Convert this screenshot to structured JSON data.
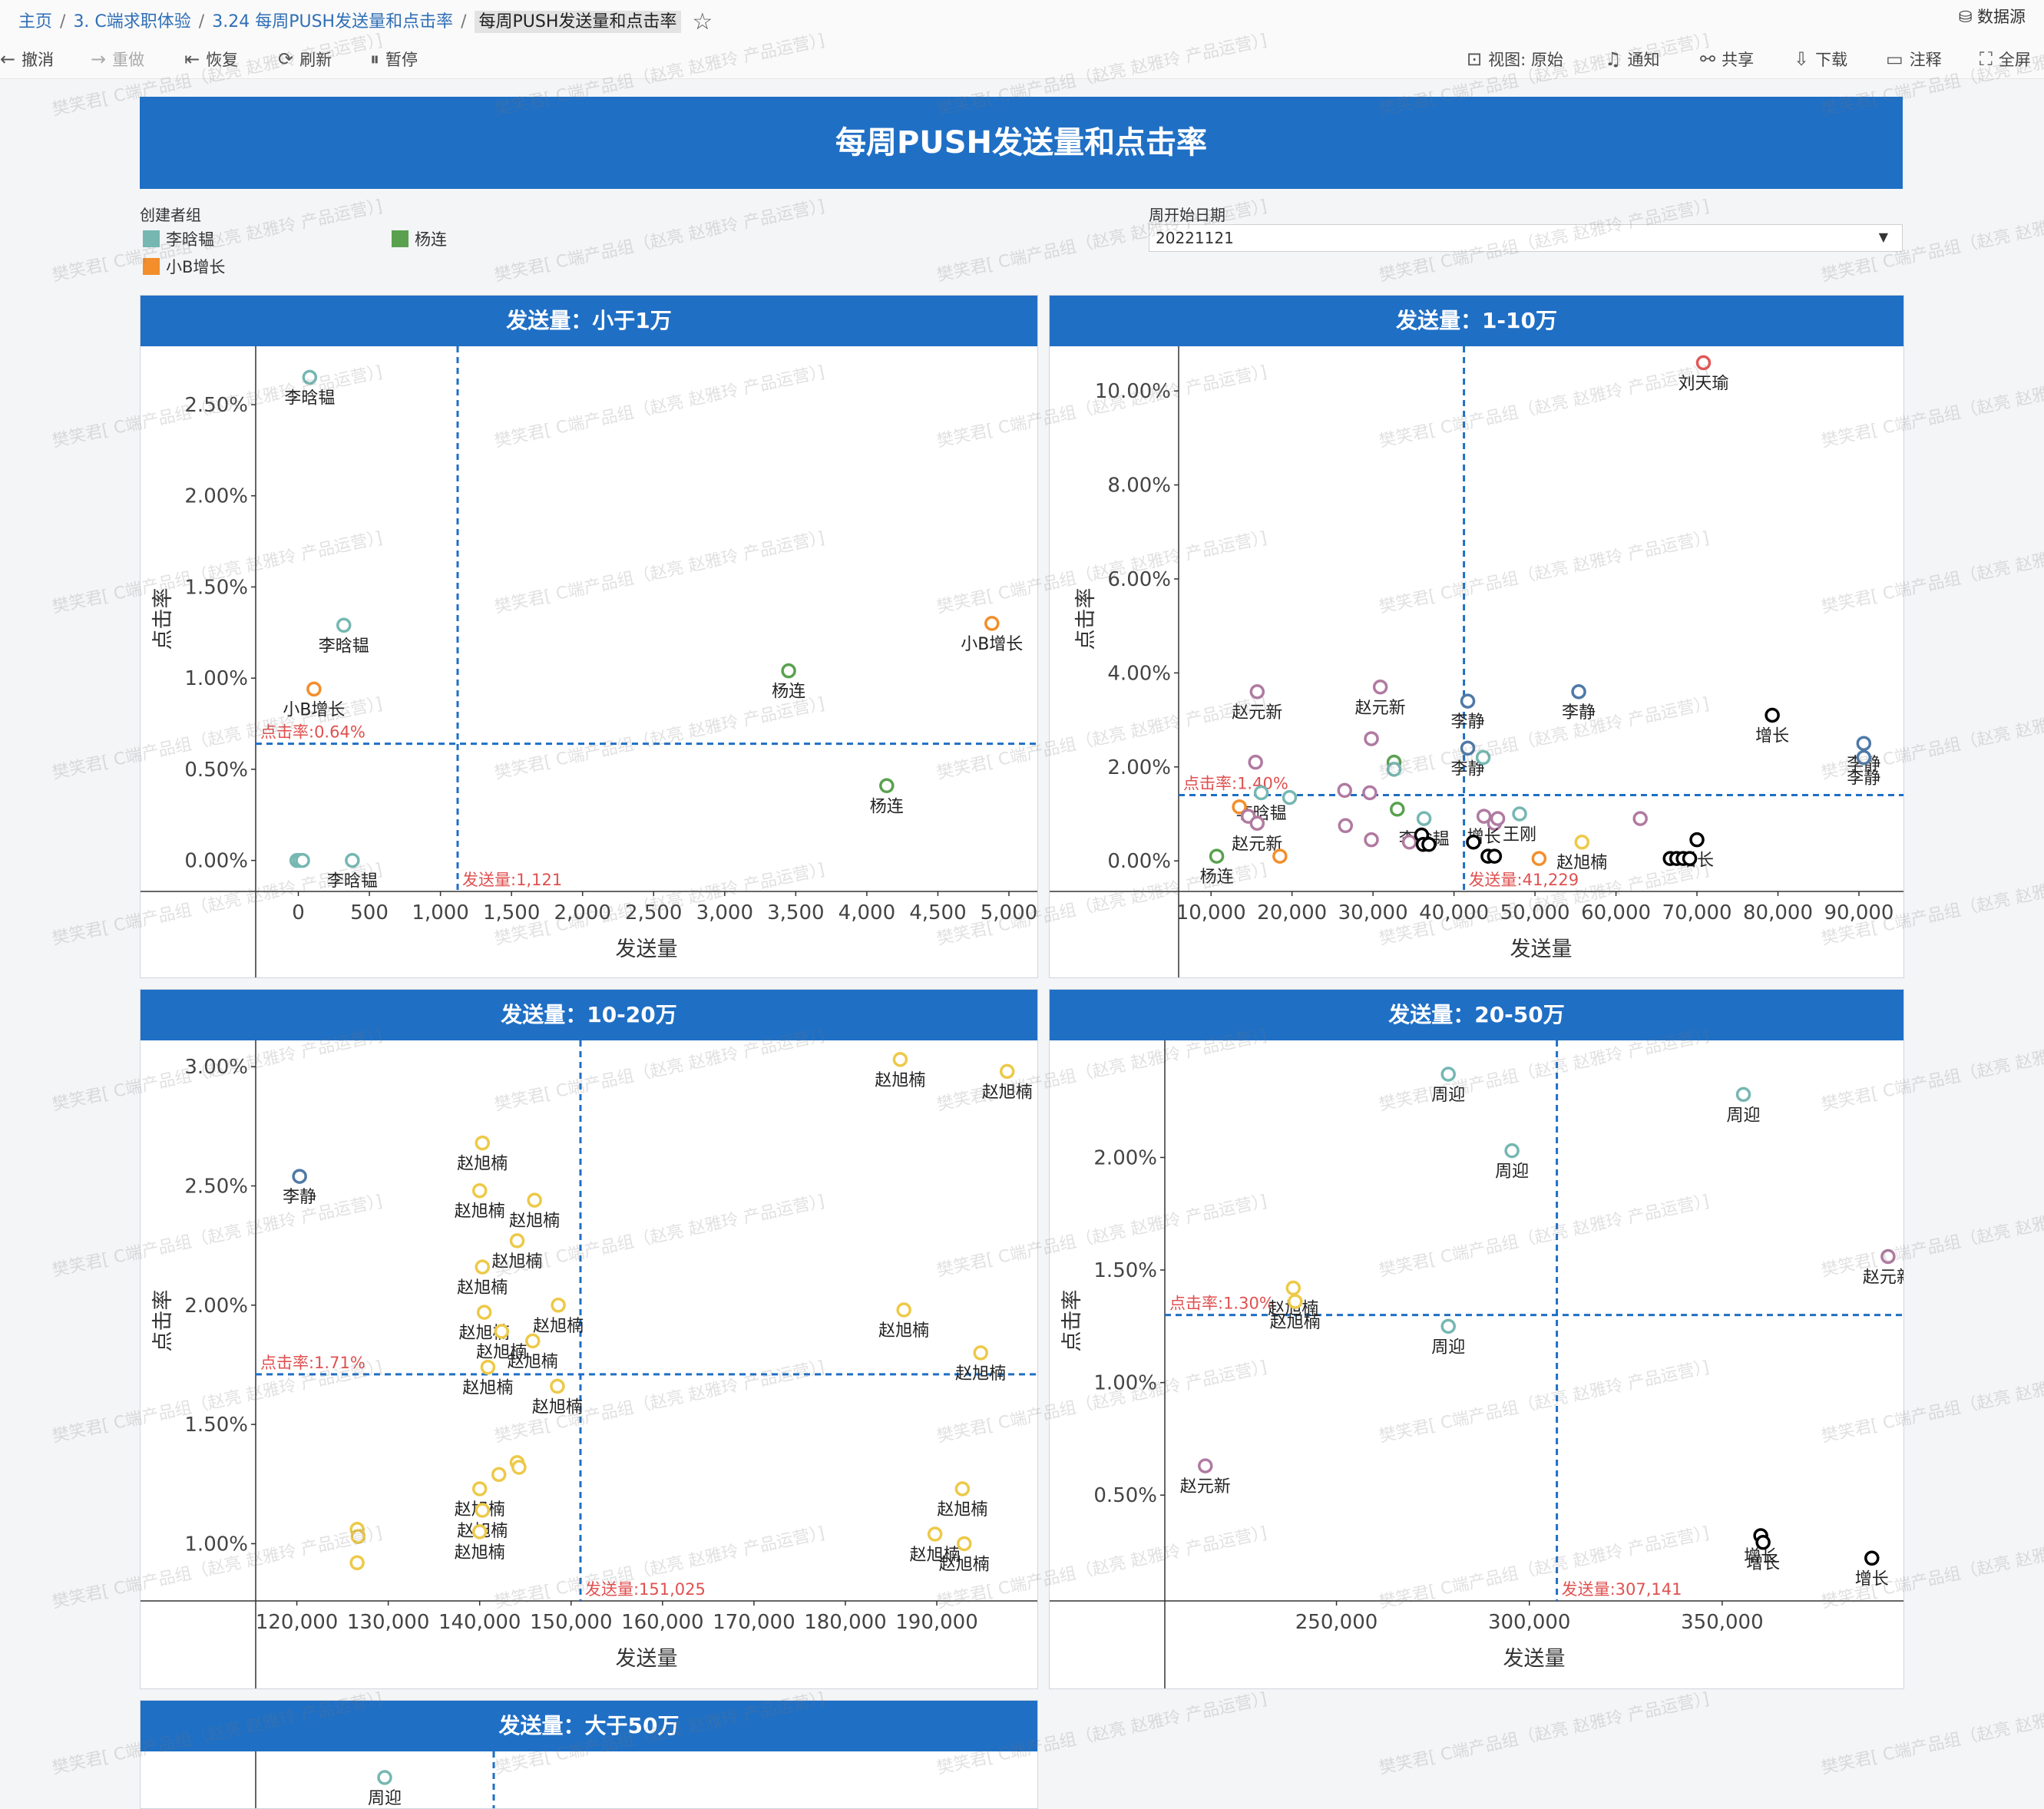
{
  "breadcrumb": {
    "items": [
      "主页",
      "3. C端求职体验",
      "3.24 每周PUSH发送量和点击率"
    ],
    "current": "每周PUSH发送量和点击率"
  },
  "datasource_label": "数据源",
  "toolbar": {
    "undo": "撤消",
    "redo": "重做",
    "revert": "恢复",
    "refresh": "刷新",
    "pause": "暂停",
    "view": "视图: 原始",
    "notify": "通知",
    "share": "共享",
    "download": "下载",
    "comment": "注释",
    "fullscreen": "全屏"
  },
  "dashboard_title": "每周PUSH发送量和点击率",
  "legend": {
    "title": "创建者组",
    "items": [
      {
        "label": "李晗韫",
        "color": "#76b7b2"
      },
      {
        "label": "杨连",
        "color": "#59a14f"
      },
      {
        "label": "小B增长",
        "color": "#f28e2b"
      }
    ]
  },
  "filter": {
    "title": "周开始日期",
    "value": "20221121"
  },
  "watermark": "樊笑君[ C端产品组（赵亮 赵雅玲 产品运营）]",
  "colors": {
    "banner": "#1f6fc5",
    "ref_line": "#1f6fc5",
    "ref_label": "#e05050"
  },
  "chart_data": [
    {
      "type": "scatter",
      "title": "发送量：小于1万",
      "xlabel": "发送量",
      "ylabel": "点击率",
      "xlim": [
        -300,
        5200
      ],
      "ylim": [
        -0.17,
        2.82
      ],
      "xticks": [
        0,
        500,
        1000,
        1500,
        2000,
        2500,
        3000,
        3500,
        4000,
        4500,
        5000
      ],
      "xtick_labels": [
        "0",
        "500",
        "1,000",
        "1,500",
        "2,000",
        "2,500",
        "3,000",
        "3,500",
        "4,000",
        "4,500",
        "5,000"
      ],
      "yticks": [
        0,
        0.5,
        1.0,
        1.5,
        2.0,
        2.5
      ],
      "ytick_labels": [
        "0.00%",
        "0.50%",
        "1.00%",
        "1.50%",
        "2.00%",
        "2.50%"
      ],
      "ref_x": 1121,
      "ref_x_label": "发送量:1,121",
      "ref_y": 0.64,
      "ref_y_label": "点击率:0.64%",
      "points": [
        {
          "x": 80,
          "y": 2.65,
          "label": "李晗韫",
          "color": "#76b7b2"
        },
        {
          "x": 320,
          "y": 1.29,
          "label": "李晗韫",
          "color": "#76b7b2"
        },
        {
          "x": 110,
          "y": 0.94,
          "label": "小B增长",
          "color": "#f28e2b"
        },
        {
          "x": 380,
          "y": 0.0,
          "label": "李晗韫",
          "color": "#76b7b2"
        },
        {
          "x": -10,
          "y": 0.0,
          "label": "",
          "color": "#76b7b2"
        },
        {
          "x": 10,
          "y": 0.0,
          "label": "",
          "color": "#76b7b2"
        },
        {
          "x": 30,
          "y": 0.0,
          "label": "",
          "color": "#76b7b2"
        },
        {
          "x": 3450,
          "y": 1.04,
          "label": "杨连",
          "color": "#59a14f"
        },
        {
          "x": 4140,
          "y": 0.41,
          "label": "杨连",
          "color": "#59a14f"
        },
        {
          "x": 4880,
          "y": 1.3,
          "label": "小B增长",
          "color": "#f28e2b"
        }
      ]
    },
    {
      "type": "scatter",
      "title": "发送量：1-10万",
      "xlabel": "发送量",
      "ylabel": "点击率",
      "xlim": [
        6000,
        95500
      ],
      "ylim": [
        -0.65,
        10.95
      ],
      "xticks": [
        10000,
        20000,
        30000,
        40000,
        50000,
        60000,
        70000,
        80000,
        90000
      ],
      "xtick_labels": [
        "10,000",
        "20,000",
        "30,000",
        "40,000",
        "50,000",
        "60,000",
        "70,000",
        "80,000",
        "90,000"
      ],
      "yticks": [
        0,
        2,
        4,
        6,
        8,
        10
      ],
      "ytick_labels": [
        "0.00%",
        "2.00%",
        "4.00%",
        "6.00%",
        "8.00%",
        "10.00%"
      ],
      "ref_x": 41229,
      "ref_x_label": "发送量:41,229",
      "ref_y": 1.4,
      "ref_y_label": "点击率:1.40%",
      "points": [
        {
          "x": 70800,
          "y": 10.6,
          "label": "刘天瑜",
          "color": "#e15759"
        },
        {
          "x": 15700,
          "y": 3.6,
          "label": "赵元新",
          "color": "#b07aa1"
        },
        {
          "x": 30900,
          "y": 3.7,
          "label": "赵元新",
          "color": "#b07aa1"
        },
        {
          "x": 41700,
          "y": 3.4,
          "label": "李静",
          "color": "#4e79a7"
        },
        {
          "x": 55400,
          "y": 3.6,
          "label": "李静",
          "color": "#4e79a7"
        },
        {
          "x": 79300,
          "y": 3.1,
          "label": "增长",
          "color": "#000000"
        },
        {
          "x": 41700,
          "y": 2.4,
          "label": "李静",
          "color": "#4e79a7"
        },
        {
          "x": 90600,
          "y": 2.5,
          "label": "李静",
          "color": "#4e79a7"
        },
        {
          "x": 90600,
          "y": 2.2,
          "label": "李静",
          "color": "#4e79a7"
        },
        {
          "x": 15500,
          "y": 2.1,
          "label": "",
          "color": "#b07aa1"
        },
        {
          "x": 29800,
          "y": 2.6,
          "label": "",
          "color": "#b07aa1"
        },
        {
          "x": 32600,
          "y": 2.1,
          "label": "",
          "color": "#59a14f"
        },
        {
          "x": 32600,
          "y": 1.95,
          "label": "",
          "color": "#76b7b2"
        },
        {
          "x": 43600,
          "y": 2.2,
          "label": "",
          "color": "#76b7b2"
        },
        {
          "x": 16200,
          "y": 1.45,
          "label": "李晗韫",
          "color": "#76b7b2"
        },
        {
          "x": 19700,
          "y": 1.35,
          "label": "",
          "color": "#76b7b2"
        },
        {
          "x": 26500,
          "y": 1.5,
          "label": "",
          "color": "#b07aa1"
        },
        {
          "x": 29600,
          "y": 1.45,
          "label": "",
          "color": "#b07aa1"
        },
        {
          "x": 36300,
          "y": 0.9,
          "label": "李晗韫",
          "color": "#76b7b2"
        },
        {
          "x": 13500,
          "y": 1.15,
          "label": "",
          "color": "#f28e2b"
        },
        {
          "x": 14600,
          "y": 0.95,
          "label": "",
          "color": "#b07aa1"
        },
        {
          "x": 15700,
          "y": 0.8,
          "label": "赵元新",
          "color": "#b07aa1"
        },
        {
          "x": 26600,
          "y": 0.75,
          "label": "",
          "color": "#b07aa1"
        },
        {
          "x": 33000,
          "y": 1.1,
          "label": "",
          "color": "#59a14f"
        },
        {
          "x": 45000,
          "y": 0.8,
          "label": "",
          "color": "#b07aa1"
        },
        {
          "x": 45400,
          "y": 0.9,
          "label": "",
          "color": "#b07aa1"
        },
        {
          "x": 43700,
          "y": 0.95,
          "label": "增长",
          "color": "#b07aa1"
        },
        {
          "x": 48100,
          "y": 1.0,
          "label": "王刚",
          "color": "#76b7b2"
        },
        {
          "x": 63000,
          "y": 0.9,
          "label": "",
          "color": "#b07aa1"
        },
        {
          "x": 29800,
          "y": 0.45,
          "label": "",
          "color": "#b07aa1"
        },
        {
          "x": 34500,
          "y": 0.4,
          "label": "",
          "color": "#b07aa1"
        },
        {
          "x": 36000,
          "y": 0.55,
          "label": "",
          "color": "#000000"
        },
        {
          "x": 36200,
          "y": 0.35,
          "label": "",
          "color": "#000000"
        },
        {
          "x": 36900,
          "y": 0.35,
          "label": "",
          "color": "#000000"
        },
        {
          "x": 42400,
          "y": 0.4,
          "label": "",
          "color": "#000000"
        },
        {
          "x": 44200,
          "y": 0.1,
          "label": "",
          "color": "#000000"
        },
        {
          "x": 45000,
          "y": 0.1,
          "label": "",
          "color": "#000000"
        },
        {
          "x": 55800,
          "y": 0.4,
          "label": "赵旭楠",
          "color": "#edc948"
        },
        {
          "x": 70000,
          "y": 0.45,
          "label": "增长",
          "color": "#000000"
        },
        {
          "x": 66700,
          "y": 0.05,
          "label": "",
          "color": "#000000"
        },
        {
          "x": 67500,
          "y": 0.05,
          "label": "",
          "color": "#000000"
        },
        {
          "x": 68300,
          "y": 0.05,
          "label": "",
          "color": "#000000"
        },
        {
          "x": 69100,
          "y": 0.05,
          "label": "",
          "color": "#000000"
        },
        {
          "x": 50500,
          "y": 0.05,
          "label": "",
          "color": "#f28e2b"
        },
        {
          "x": 18500,
          "y": 0.1,
          "label": "",
          "color": "#f28e2b"
        },
        {
          "x": 10700,
          "y": 0.1,
          "label": "杨连",
          "color": "#59a14f"
        }
      ]
    },
    {
      "type": "scatter",
      "title": "发送量：10-20万",
      "xlabel": "发送量",
      "ylabel": "点击率",
      "xlim": [
        115500,
        201000
      ],
      "ylim": [
        0.76,
        3.11
      ],
      "xticks": [
        120000,
        130000,
        140000,
        150000,
        160000,
        170000,
        180000,
        190000
      ],
      "xtick_labels": [
        "120,000",
        "130,000",
        "140,000",
        "150,000",
        "160,000",
        "170,000",
        "180,000",
        "190,000"
      ],
      "yticks": [
        1.0,
        1.5,
        2.0,
        2.5,
        3.0
      ],
      "ytick_labels": [
        "1.00%",
        "1.50%",
        "2.00%",
        "2.50%",
        "3.00%"
      ],
      "ref_x": 151025,
      "ref_x_label": "发送量:151,025",
      "ref_y": 1.71,
      "ref_y_label": "点击率:1.71%",
      "points": [
        {
          "x": 120300,
          "y": 2.54,
          "label": "李静",
          "color": "#4e79a7"
        },
        {
          "x": 140300,
          "y": 2.68,
          "label": "赵旭楠",
          "color": "#edc948"
        },
        {
          "x": 140000,
          "y": 2.48,
          "label": "赵旭楠",
          "color": "#edc948"
        },
        {
          "x": 146000,
          "y": 2.44,
          "label": "赵旭楠",
          "color": "#edc948"
        },
        {
          "x": 144100,
          "y": 2.27,
          "label": "赵旭楠",
          "color": "#edc948"
        },
        {
          "x": 140300,
          "y": 2.16,
          "label": "赵旭楠",
          "color": "#edc948"
        },
        {
          "x": 140500,
          "y": 1.97,
          "label": "赵旭楠",
          "color": "#edc948"
        },
        {
          "x": 148600,
          "y": 2.0,
          "label": "赵旭楠",
          "color": "#edc948"
        },
        {
          "x": 142400,
          "y": 1.89,
          "label": "赵旭楠",
          "color": "#edc948"
        },
        {
          "x": 145800,
          "y": 1.85,
          "label": "赵旭楠",
          "color": "#edc948"
        },
        {
          "x": 140900,
          "y": 1.74,
          "label": "赵旭楠",
          "color": "#edc948"
        },
        {
          "x": 148500,
          "y": 1.66,
          "label": "赵旭楠",
          "color": "#edc948"
        },
        {
          "x": 186000,
          "y": 3.03,
          "label": "赵旭楠",
          "color": "#edc948"
        },
        {
          "x": 197700,
          "y": 2.98,
          "label": "赵旭楠",
          "color": "#edc948"
        },
        {
          "x": 186400,
          "y": 1.98,
          "label": "赵旭楠",
          "color": "#edc948"
        },
        {
          "x": 194800,
          "y": 1.8,
          "label": "赵旭楠",
          "color": "#edc948"
        },
        {
          "x": 144100,
          "y": 1.34,
          "label": "",
          "color": "#edc948"
        },
        {
          "x": 144300,
          "y": 1.32,
          "label": "",
          "color": "#edc948"
        },
        {
          "x": 142100,
          "y": 1.29,
          "label": "",
          "color": "#edc948"
        },
        {
          "x": 140000,
          "y": 1.23,
          "label": "赵旭楠",
          "color": "#edc948"
        },
        {
          "x": 140300,
          "y": 1.14,
          "label": "赵旭楠",
          "color": "#edc948"
        },
        {
          "x": 140000,
          "y": 1.05,
          "label": "赵旭楠",
          "color": "#edc948"
        },
        {
          "x": 126600,
          "y": 1.06,
          "label": "",
          "color": "#edc948"
        },
        {
          "x": 126700,
          "y": 1.03,
          "label": "",
          "color": "#edc948"
        },
        {
          "x": 126600,
          "y": 0.92,
          "label": "",
          "color": "#edc948"
        },
        {
          "x": 192800,
          "y": 1.23,
          "label": "赵旭楠",
          "color": "#edc948"
        },
        {
          "x": 189800,
          "y": 1.04,
          "label": "赵旭楠",
          "color": "#edc948"
        },
        {
          "x": 193000,
          "y": 1.0,
          "label": "赵旭楠",
          "color": "#edc948"
        }
      ]
    },
    {
      "type": "scatter",
      "title": "发送量：20-50万",
      "xlabel": "发送量",
      "ylabel": "点击率",
      "xlim": [
        205500,
        397000
      ],
      "ylim": [
        0.03,
        2.52
      ],
      "xticks": [
        250000,
        300000,
        350000
      ],
      "xtick_labels": [
        "250,000",
        "300,000",
        "350,000"
      ],
      "yticks": [
        0.5,
        1.0,
        1.5,
        2.0
      ],
      "ytick_labels": [
        "0.50%",
        "1.00%",
        "1.50%",
        "2.00%"
      ],
      "ref_x": 307141,
      "ref_x_label": "发送量:307,141",
      "ref_y": 1.3,
      "ref_y_label": "点击率:1.30%",
      "points": [
        {
          "x": 279000,
          "y": 2.37,
          "label": "周迎",
          "color": "#76b7b2"
        },
        {
          "x": 355500,
          "y": 2.28,
          "label": "周迎",
          "color": "#76b7b2"
        },
        {
          "x": 295500,
          "y": 2.03,
          "label": "周迎",
          "color": "#76b7b2"
        },
        {
          "x": 393000,
          "y": 1.56,
          "label": "赵元新",
          "color": "#b07aa1"
        },
        {
          "x": 238800,
          "y": 1.42,
          "label": "赵旭楠",
          "color": "#edc948"
        },
        {
          "x": 239300,
          "y": 1.36,
          "label": "赵旭楠",
          "color": "#edc948"
        },
        {
          "x": 279000,
          "y": 1.25,
          "label": "周迎",
          "color": "#76b7b2"
        },
        {
          "x": 216000,
          "y": 0.63,
          "label": "赵元新",
          "color": "#b07aa1"
        },
        {
          "x": 360000,
          "y": 0.32,
          "label": "增长",
          "color": "#000000"
        },
        {
          "x": 360600,
          "y": 0.29,
          "label": "增长",
          "color": "#000000"
        },
        {
          "x": 388800,
          "y": 0.22,
          "label": "增长",
          "color": "#000000"
        }
      ]
    },
    {
      "type": "scatter",
      "title": "发送量：大于50万",
      "xlabel": "",
      "ylabel": "",
      "points": [
        {
          "x": 0,
          "y": 0,
          "label": "周迎",
          "color": "#76b7b2"
        }
      ]
    }
  ]
}
